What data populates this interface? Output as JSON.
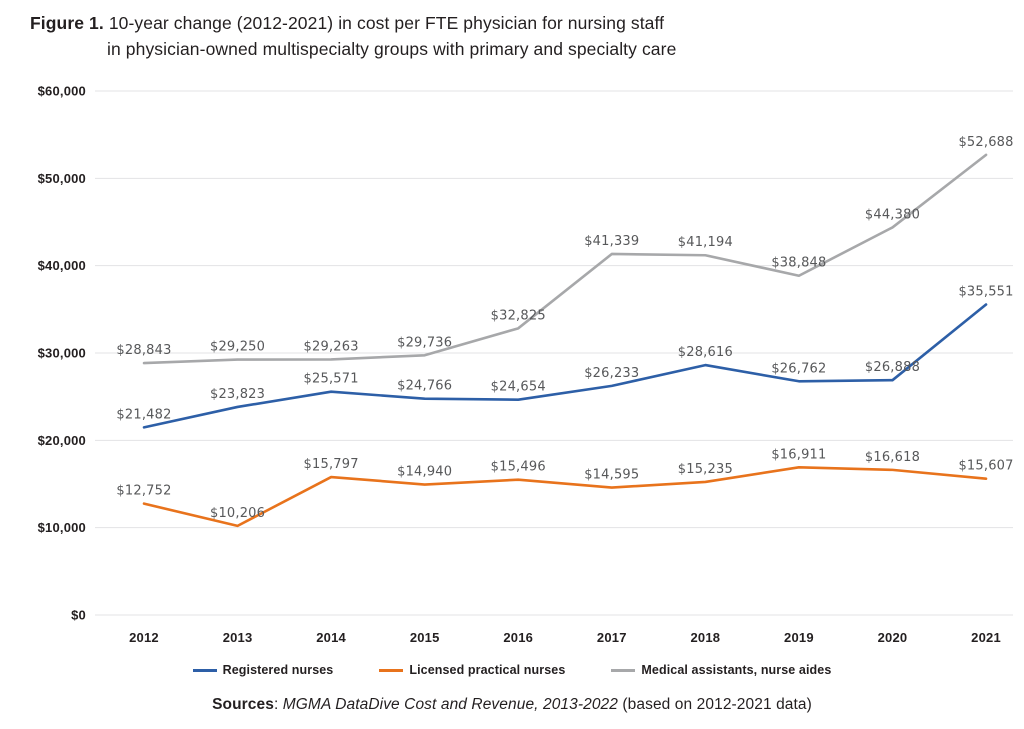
{
  "figure": {
    "label": "Figure 1.",
    "title_line1": "10-year change (2012-2021) in cost per FTE physician for nursing staff",
    "title_line2": "in physician-owned multispecialty groups with primary and specialty care"
  },
  "chart_data": {
    "type": "line",
    "title": "10-year change (2012-2021) in cost per FTE physician for nursing staff in physician-owned multispecialty groups with primary and specialty care",
    "categories": [
      "2012",
      "2013",
      "2014",
      "2015",
      "2016",
      "2017",
      "2018",
      "2019",
      "2020",
      "2021"
    ],
    "series": [
      {
        "name": "Registered nurses",
        "color": "#2d5fa7",
        "values": [
          21482,
          23823,
          25571,
          24766,
          24654,
          26233,
          28616,
          26762,
          26888,
          35551
        ]
      },
      {
        "name": "Licensed practical nurses",
        "color": "#e8731c",
        "values": [
          12752,
          10206,
          15797,
          14940,
          15496,
          14595,
          15235,
          16911,
          16618,
          15607
        ]
      },
      {
        "name": "Medical assistants, nurse aides",
        "color": "#a7a8aa",
        "values": [
          28843,
          29250,
          29263,
          29736,
          32825,
          41339,
          41194,
          38848,
          44380,
          52688
        ]
      }
    ],
    "xlabel": "",
    "ylabel": "",
    "ylim": [
      0,
      60000
    ],
    "ytick_step": 10000,
    "ytick_labels": [
      "$0",
      "$10,000",
      "$20,000",
      "$30,000",
      "$40,000",
      "$50,000",
      "$60,000"
    ],
    "value_label_prefix": "$",
    "grid": "horizontal",
    "legend_position": "bottom",
    "colors": {
      "gridline": "#e3e3e4",
      "axis_label": "#231f20",
      "value_label": "#57585a"
    }
  },
  "sources": {
    "prefix": "Sources",
    "separator": ": ",
    "citation": "MGMA DataDive Cost and Revenue, 2013-2022",
    "suffix": " (based on 2012-2021 data)"
  }
}
